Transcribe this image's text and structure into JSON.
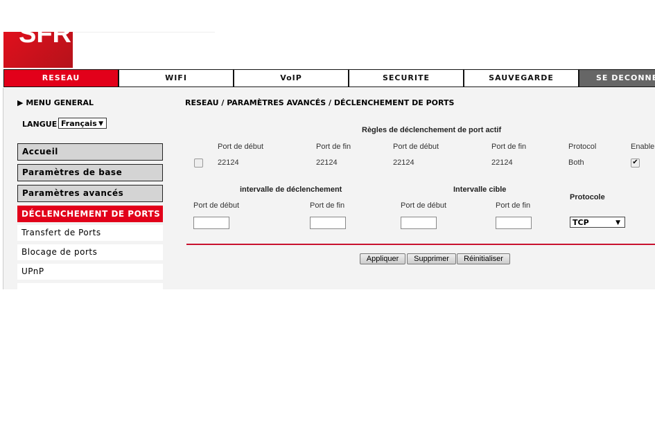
{
  "logo": "SFR",
  "tabs": [
    "RESEAU",
    "WIFI",
    "VoIP",
    "SECURITE",
    "SAUVEGARDE",
    "SE DECONNECTER"
  ],
  "sidebar": {
    "menu_general": "MENU GENERAL",
    "langue_label": "LANGUE",
    "langue_value": "Français",
    "items": [
      "Accueil",
      "Paramètres de base",
      "Paramètres avancés",
      "DÉCLENCHEMENT DE PORTS",
      "Transfert de Ports",
      "Blocage de ports",
      "UPnP"
    ]
  },
  "breadcrumb": "RESEAU / PARAMÈTRES AVANCÉS / DÉCLENCHEMENT DE PORTS",
  "rules": {
    "title": "Règles de déclenchement de port actif",
    "headers": [
      "Port de début",
      "Port de fin",
      "Port de début",
      "Port de fin",
      "Protocol",
      "Enable"
    ],
    "rows": [
      {
        "selected": false,
        "trig_start": "22124",
        "trig_end": "22124",
        "tgt_start": "22124",
        "tgt_end": "22124",
        "protocol": "Both",
        "enabled": true
      }
    ]
  },
  "form": {
    "trigger_title": "intervalle de déclenchement",
    "target_title": "Intervalle cible",
    "protocol_title": "Protocole",
    "start_label": "Port de début",
    "end_label": "Port de fin",
    "protocol_value": "TCP",
    "trig_start": "",
    "trig_end": "",
    "tgt_start": "",
    "tgt_end": ""
  },
  "buttons": {
    "apply": "Appliquer",
    "delete": "Supprimer",
    "reset": "Réinitialiser"
  },
  "colors": {
    "accent": "#e2001a",
    "logout": "#666666"
  }
}
